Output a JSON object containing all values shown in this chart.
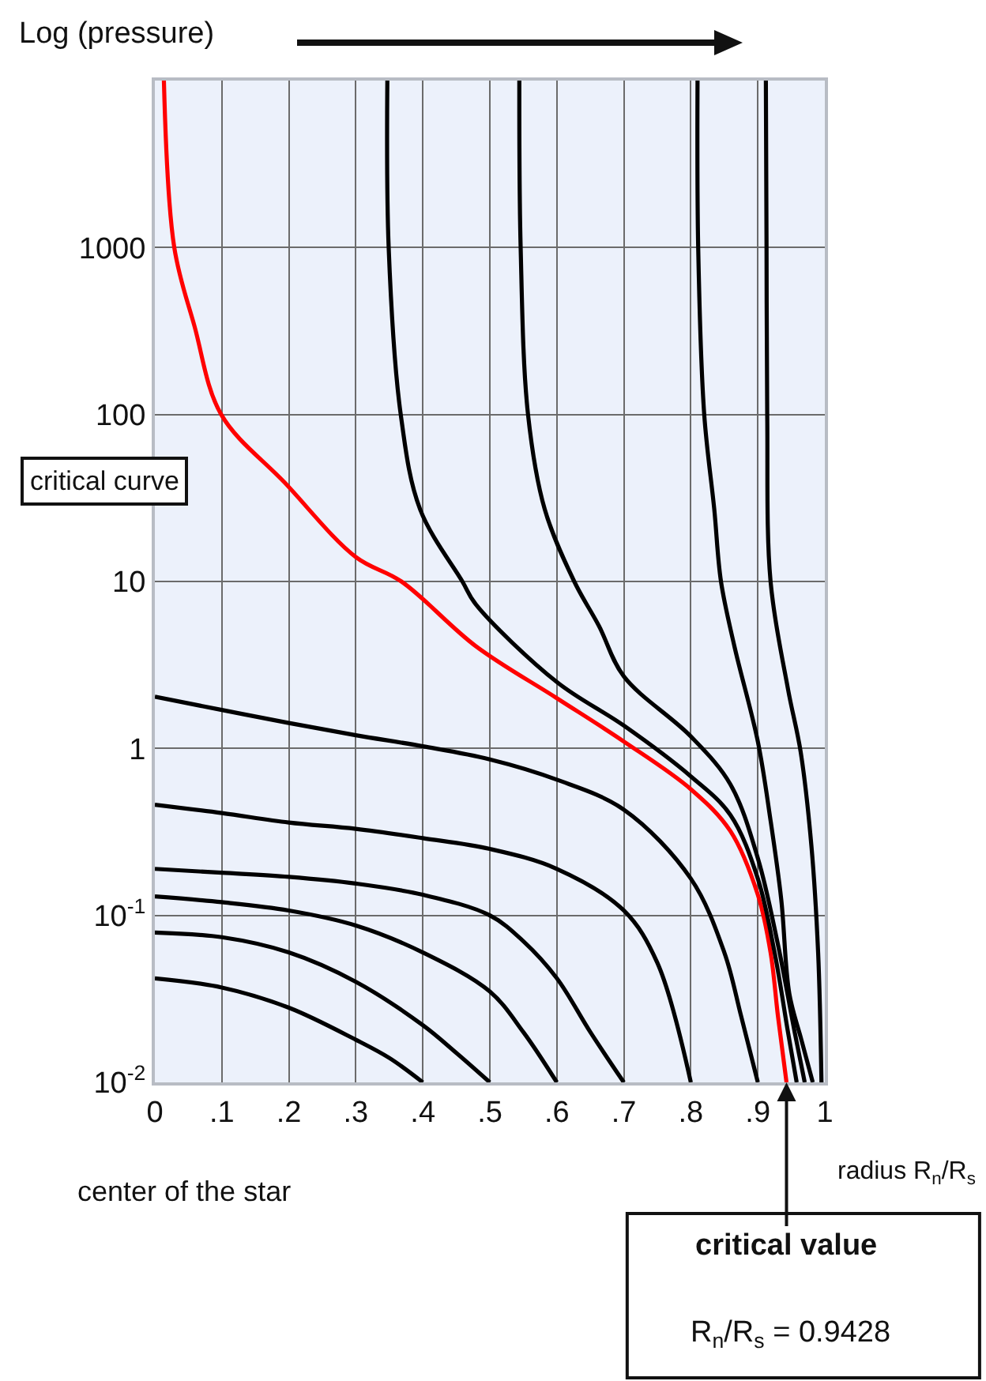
{
  "chart_data": {
    "type": "line",
    "ylabel": "Log (pressure)",
    "xlabel": "radius R$_{n}$/R$_{s}$",
    "xlim": [
      0,
      1
    ],
    "xticks": [
      0,
      {
        "value": 0.1,
        "label": ".1"
      },
      {
        "value": 0.2,
        "label": ".2"
      },
      {
        "value": 0.3,
        "label": ".3"
      },
      {
        "value": 0.4,
        "label": ".4"
      },
      {
        "value": 0.5,
        "label": ".5"
      },
      {
        "value": 0.6,
        "label": ".6"
      },
      {
        "value": 0.7,
        "label": ".7"
      },
      {
        "value": 0.8,
        "label": ".8"
      },
      {
        "value": 0.9,
        "label": ".9"
      },
      1
    ],
    "ylim": [
      0.01,
      10000
    ],
    "yticks": [
      {
        "value": 0.01,
        "label": "10$^{-2}$"
      },
      {
        "value": 0.1,
        "label": "10$^{-1}$"
      },
      1,
      10,
      100,
      1000
    ],
    "log": "y",
    "grid": true,
    "marker": "none",
    "line_style": "solid",
    "annotations": [
      "center of the star",
      "critical curve",
      {
        "text": "critical value",
        "x": 0.9428,
        "y": 0.01
      },
      "R$_{n}$/R$_{s}$ = 0.9428"
    ],
    "series": [
      {
        "color": "#ff0000",
        "x": [
          0.0135,
          0.029,
          0.059,
          0.099,
          0.194,
          0.3,
          0.368,
          0.479,
          0.6,
          0.7,
          0.8,
          0.859,
          0.9,
          0.919,
          0.93,
          0.9428
        ],
        "values": [
          10000,
          1000,
          340,
          100,
          39,
          14,
          10,
          4.1,
          2.0,
          1.1,
          0.57,
          0.32,
          0.133,
          0.06,
          0.025,
          0.01
        ]
      },
      {
        "color": "#000000",
        "x": [
          0.347,
          0.349,
          0.367,
          0.396,
          0.459,
          0.479,
          0.6,
          0.7,
          0.8,
          0.859,
          0.9,
          0.925,
          0.945,
          0.958
        ],
        "values": [
          10000,
          1000,
          100,
          27,
          10,
          7.3,
          2.5,
          1.37,
          0.68,
          0.4,
          0.166,
          0.06,
          0.02,
          0.01
        ]
      },
      {
        "color": "#000000",
        "x": [
          0.544,
          0.546,
          0.557,
          0.582,
          0.626,
          0.663,
          0.7,
          0.8,
          0.859,
          0.9,
          0.929,
          0.955,
          0.97
        ],
        "values": [
          10000,
          1000,
          100,
          27,
          10,
          5.4,
          2.7,
          1.18,
          0.61,
          0.22,
          0.07,
          0.02,
          0.01
        ]
      },
      {
        "color": "#000000",
        "x": [
          0.81,
          0.811,
          0.82,
          0.835,
          0.845,
          0.865,
          0.9,
          0.919,
          0.935,
          0.947,
          0.965,
          0.982
        ],
        "values": [
          10000,
          1000,
          100,
          27,
          10,
          4.1,
          1.1,
          0.37,
          0.124,
          0.034,
          0.018,
          0.01
        ]
      },
      {
        "color": "#000000",
        "x": [
          0.912,
          0.913,
          0.914,
          0.919,
          0.945,
          0.964,
          0.98,
          0.99,
          0.995
        ],
        "values": [
          10000,
          1000,
          100,
          10,
          2.27,
          0.95,
          0.26,
          0.06,
          0.01
        ]
      },
      {
        "color": "#000000",
        "x": [
          0,
          0.1,
          0.2,
          0.3,
          0.4,
          0.5,
          0.6,
          0.7,
          0.8,
          0.85,
          0.875,
          0.9
        ],
        "values": [
          2.04,
          1.7,
          1.42,
          1.2,
          1.03,
          0.86,
          0.65,
          0.43,
          0.166,
          0.06,
          0.025,
          0.01
        ]
      },
      {
        "color": "#000000",
        "x": [
          0,
          0.1,
          0.2,
          0.3,
          0.4,
          0.5,
          0.6,
          0.7,
          0.75,
          0.8
        ],
        "values": [
          0.46,
          0.41,
          0.36,
          0.33,
          0.29,
          0.25,
          0.19,
          0.107,
          0.052,
          0.01
        ]
      },
      {
        "color": "#000000",
        "x": [
          0,
          0.1,
          0.2,
          0.3,
          0.4,
          0.5,
          0.55,
          0.6,
          0.65,
          0.7
        ],
        "values": [
          0.19,
          0.18,
          0.17,
          0.155,
          0.133,
          0.1,
          0.07,
          0.042,
          0.02,
          0.01
        ]
      },
      {
        "color": "#000000",
        "x": [
          0,
          0.1,
          0.2,
          0.3,
          0.4,
          0.5,
          0.55,
          0.6
        ],
        "values": [
          0.13,
          0.12,
          0.107,
          0.087,
          0.06,
          0.035,
          0.02,
          0.01
        ]
      },
      {
        "color": "#000000",
        "x": [
          0,
          0.1,
          0.2,
          0.3,
          0.4,
          0.45,
          0.5
        ],
        "values": [
          0.079,
          0.074,
          0.06,
          0.04,
          0.022,
          0.015,
          0.01
        ]
      },
      {
        "color": "#000000",
        "x": [
          0,
          0.1,
          0.2,
          0.3,
          0.35,
          0.4
        ],
        "values": [
          0.042,
          0.037,
          0.028,
          0.018,
          0.014,
          0.01
        ]
      }
    ]
  }
}
